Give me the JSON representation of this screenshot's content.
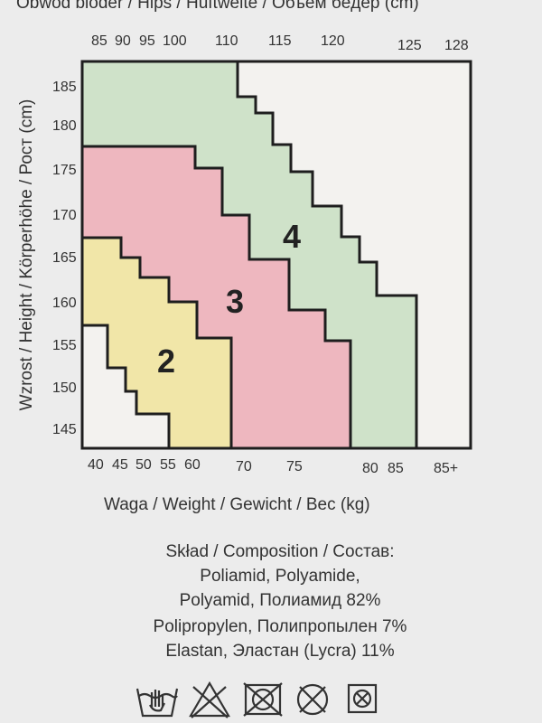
{
  "header": {
    "hips_title_partial": "Obwód bioder / Hips / Hüftweite / Объем бёдер (cm)"
  },
  "hips_labels": [
    "85",
    "90",
    "95",
    "100",
    "110",
    "115",
    "120",
    "125",
    "128"
  ],
  "height_axis": {
    "label": "Wzrost / Height / Körperhöhe / Рост (cm)",
    "ticks": [
      "185",
      "180",
      "175",
      "170",
      "165",
      "160",
      "155",
      "150",
      "145"
    ]
  },
  "weight_axis": {
    "label": "Waga / Weight / Gewicht / Вес (kg)",
    "ticks": [
      "40",
      "45",
      "50",
      "55",
      "60",
      "70",
      "75",
      "80",
      "85",
      "85+"
    ]
  },
  "size_zones": [
    "2",
    "3",
    "4"
  ],
  "zone_colors": {
    "white": "#f3f2ef",
    "yellow": "#f1e6a8",
    "red": "#eeb7bf",
    "green": "#cfe2c9",
    "border": "#1e1e1e"
  },
  "composition": {
    "title": "Skład / Composition / Состав:",
    "lines": [
      "Poliamid, Polyamide,",
      "Polyamid, Полиамид 82%",
      "Polipropylen, Полипропылен 7%",
      "Elastan, Эластан (Lycra) 11%"
    ]
  },
  "care_icons": [
    "hand-wash-icon",
    "no-bleach-icon",
    "no-tumble-dry-icon",
    "no-dry-clean-icon",
    "no-iron-icon"
  ]
}
